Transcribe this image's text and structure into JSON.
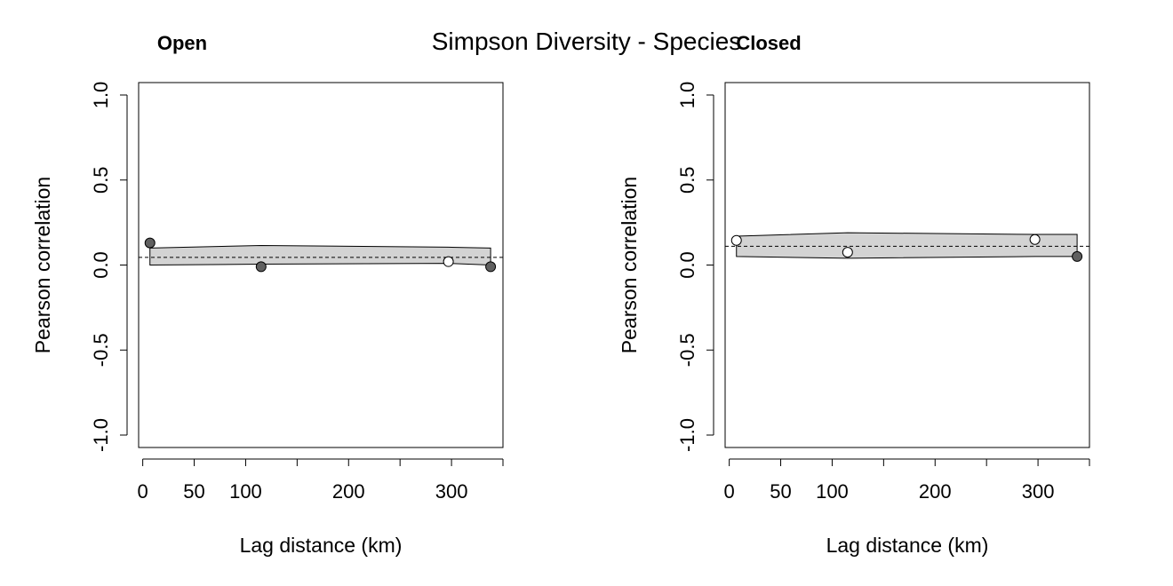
{
  "chart_data": {
    "title": "Simpson Diversity - Species",
    "panels": [
      {
        "type": "line",
        "title": "Open",
        "xlabel": "Lag distance (km)",
        "ylabel": "Pearson correlation",
        "xlim": [
          -4,
          350
        ],
        "ylim": [
          -1.0,
          1.0
        ],
        "xticks": [
          0,
          50,
          100,
          150,
          200,
          250,
          300,
          350
        ],
        "xtick_labels": [
          "0",
          "50",
          "100",
          "",
          "200",
          "",
          "300",
          ""
        ],
        "yticks": [
          -1.0,
          -0.5,
          0.0,
          0.5,
          1.0
        ],
        "ytick_labels": [
          "-1.0",
          "-0.5",
          "0.0",
          "0.5",
          "1.0"
        ],
        "grid": false,
        "reference_line": 0.045,
        "envelope": {
          "x": [
            7,
            115,
            297,
            338
          ],
          "upper": [
            0.1,
            0.115,
            0.105,
            0.1
          ],
          "lower": [
            0.0,
            0.005,
            0.01,
            0.0
          ]
        },
        "points": [
          {
            "x": 7,
            "y": 0.13,
            "fill": "#606060"
          },
          {
            "x": 115,
            "y": -0.01,
            "fill": "#606060"
          },
          {
            "x": 297,
            "y": 0.02,
            "fill": "#ffffff"
          },
          {
            "x": 338,
            "y": -0.01,
            "fill": "#606060"
          }
        ]
      },
      {
        "type": "line",
        "title": "Closed",
        "xlabel": "Lag distance (km)",
        "ylabel": "Pearson correlation",
        "xlim": [
          -4,
          350
        ],
        "ylim": [
          -1.0,
          1.0
        ],
        "xticks": [
          0,
          50,
          100,
          150,
          200,
          250,
          300,
          350
        ],
        "xtick_labels": [
          "0",
          "50",
          "100",
          "",
          "200",
          "",
          "300",
          ""
        ],
        "yticks": [
          -1.0,
          -0.5,
          0.0,
          0.5,
          1.0
        ],
        "ytick_labels": [
          "-1.0",
          "-0.5",
          "0.0",
          "0.5",
          "1.0"
        ],
        "grid": false,
        "reference_line": 0.11,
        "envelope": {
          "x": [
            7,
            115,
            297,
            338
          ],
          "upper": [
            0.17,
            0.19,
            0.18,
            0.18
          ],
          "lower": [
            0.05,
            0.04,
            0.05,
            0.05
          ]
        },
        "points": [
          {
            "x": 7,
            "y": 0.145,
            "fill": "#ffffff"
          },
          {
            "x": 115,
            "y": 0.075,
            "fill": "#ffffff"
          },
          {
            "x": 297,
            "y": 0.15,
            "fill": "#ffffff"
          },
          {
            "x": 338,
            "y": 0.05,
            "fill": "#606060"
          }
        ]
      }
    ]
  },
  "colors": {
    "envelope_fill": "#d3d3d3",
    "axis": "#000000"
  }
}
